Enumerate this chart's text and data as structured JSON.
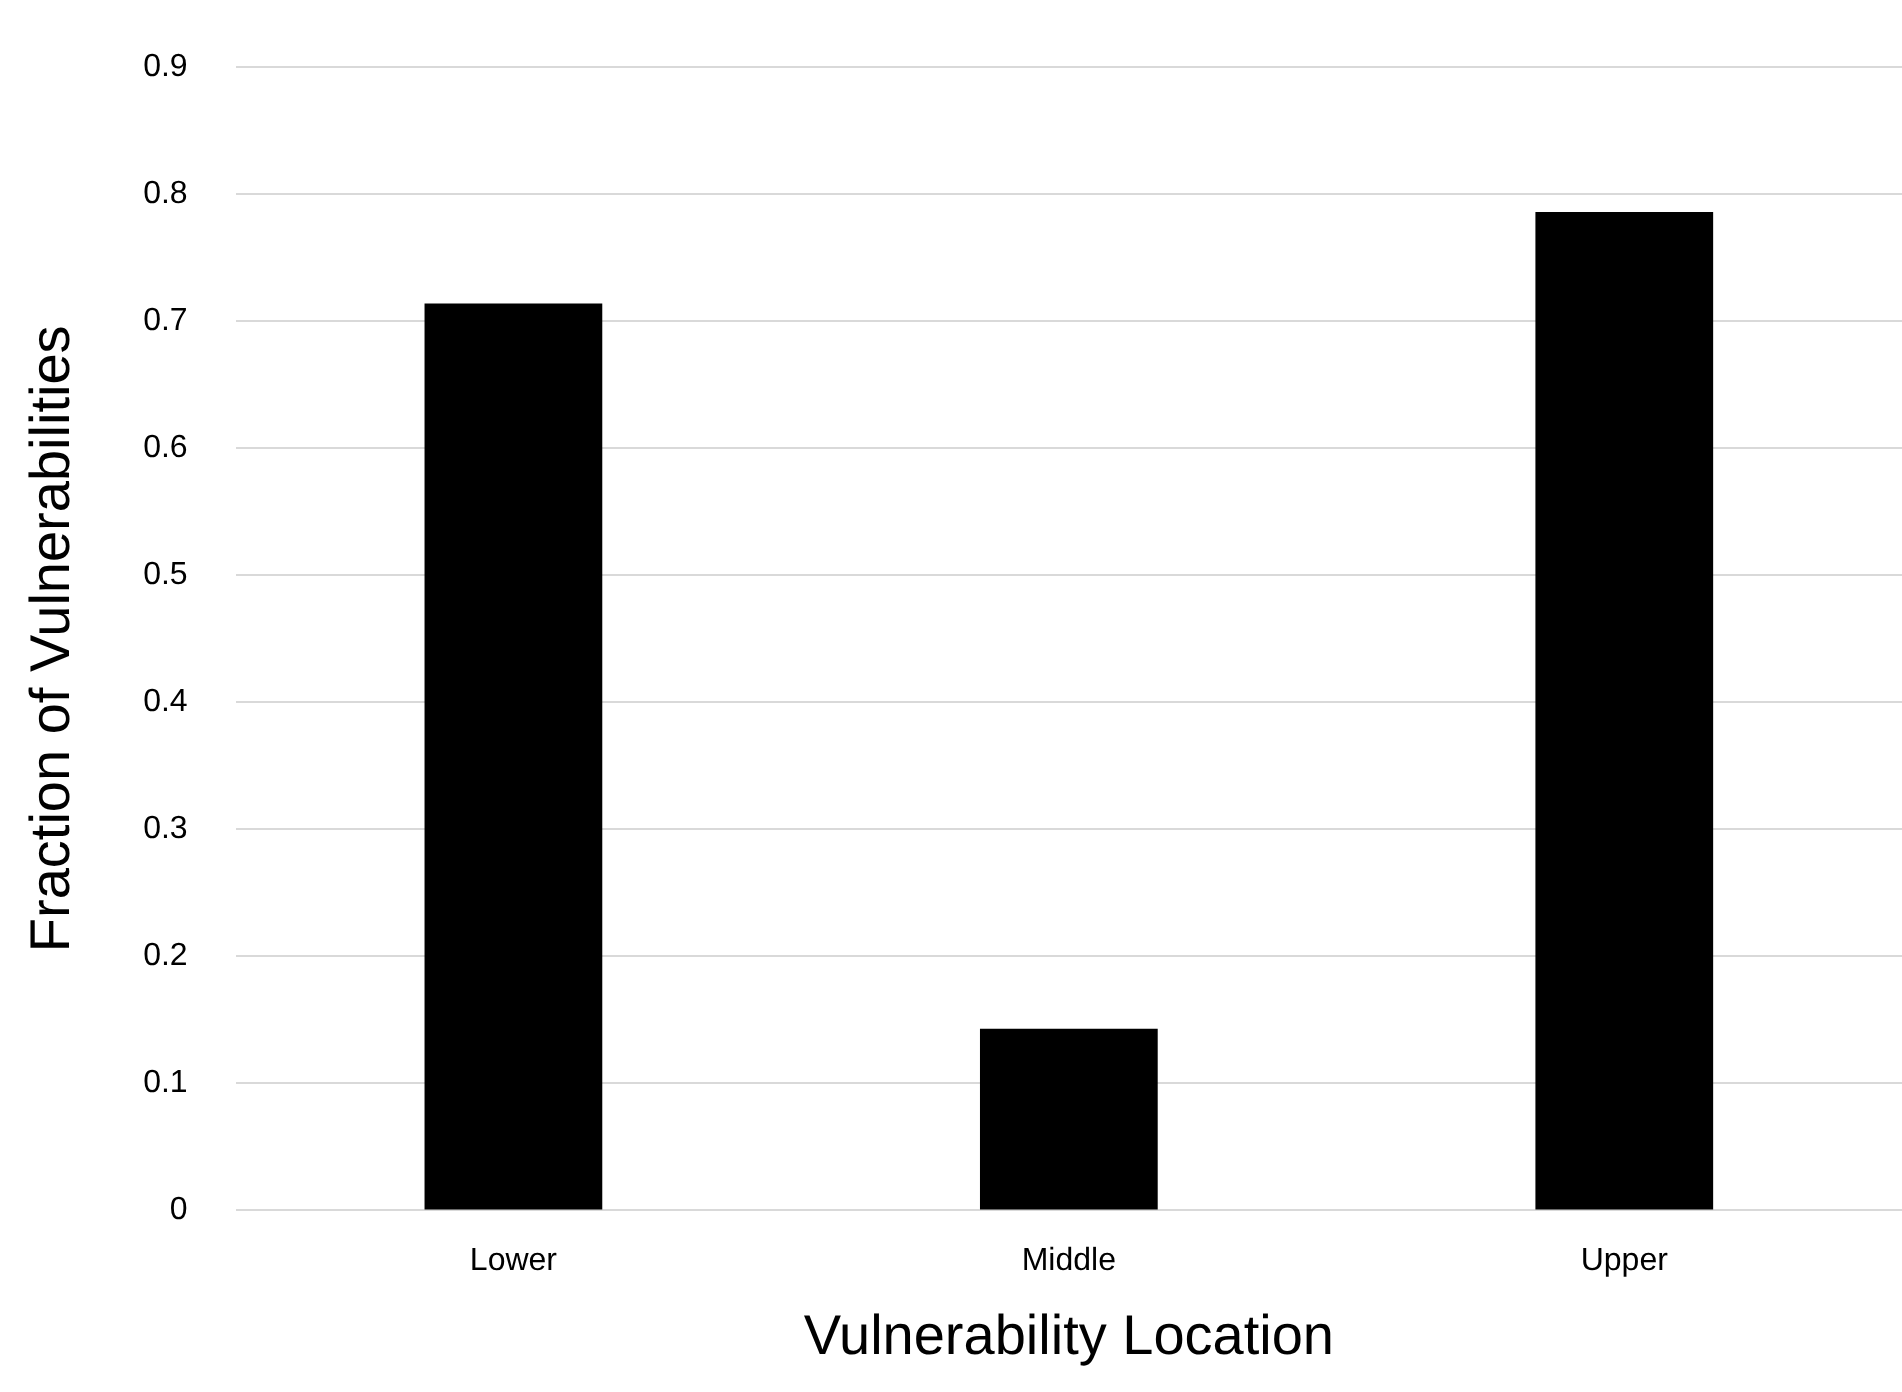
{
  "chart_data": {
    "type": "bar",
    "xlabel": "Vulnerability Location",
    "ylabel": "Fraction of Vulnerabilities",
    "categories": [
      "Lower",
      "Middle",
      "Upper"
    ],
    "values": [
      0.714,
      0.143,
      0.786
    ],
    "color": "#000000",
    "ylim": [
      0,
      0.9
    ],
    "yticks": [
      0,
      0.1,
      0.2,
      0.3,
      0.4,
      0.5,
      0.6,
      0.7,
      0.8,
      0.9
    ],
    "grid": "y"
  }
}
